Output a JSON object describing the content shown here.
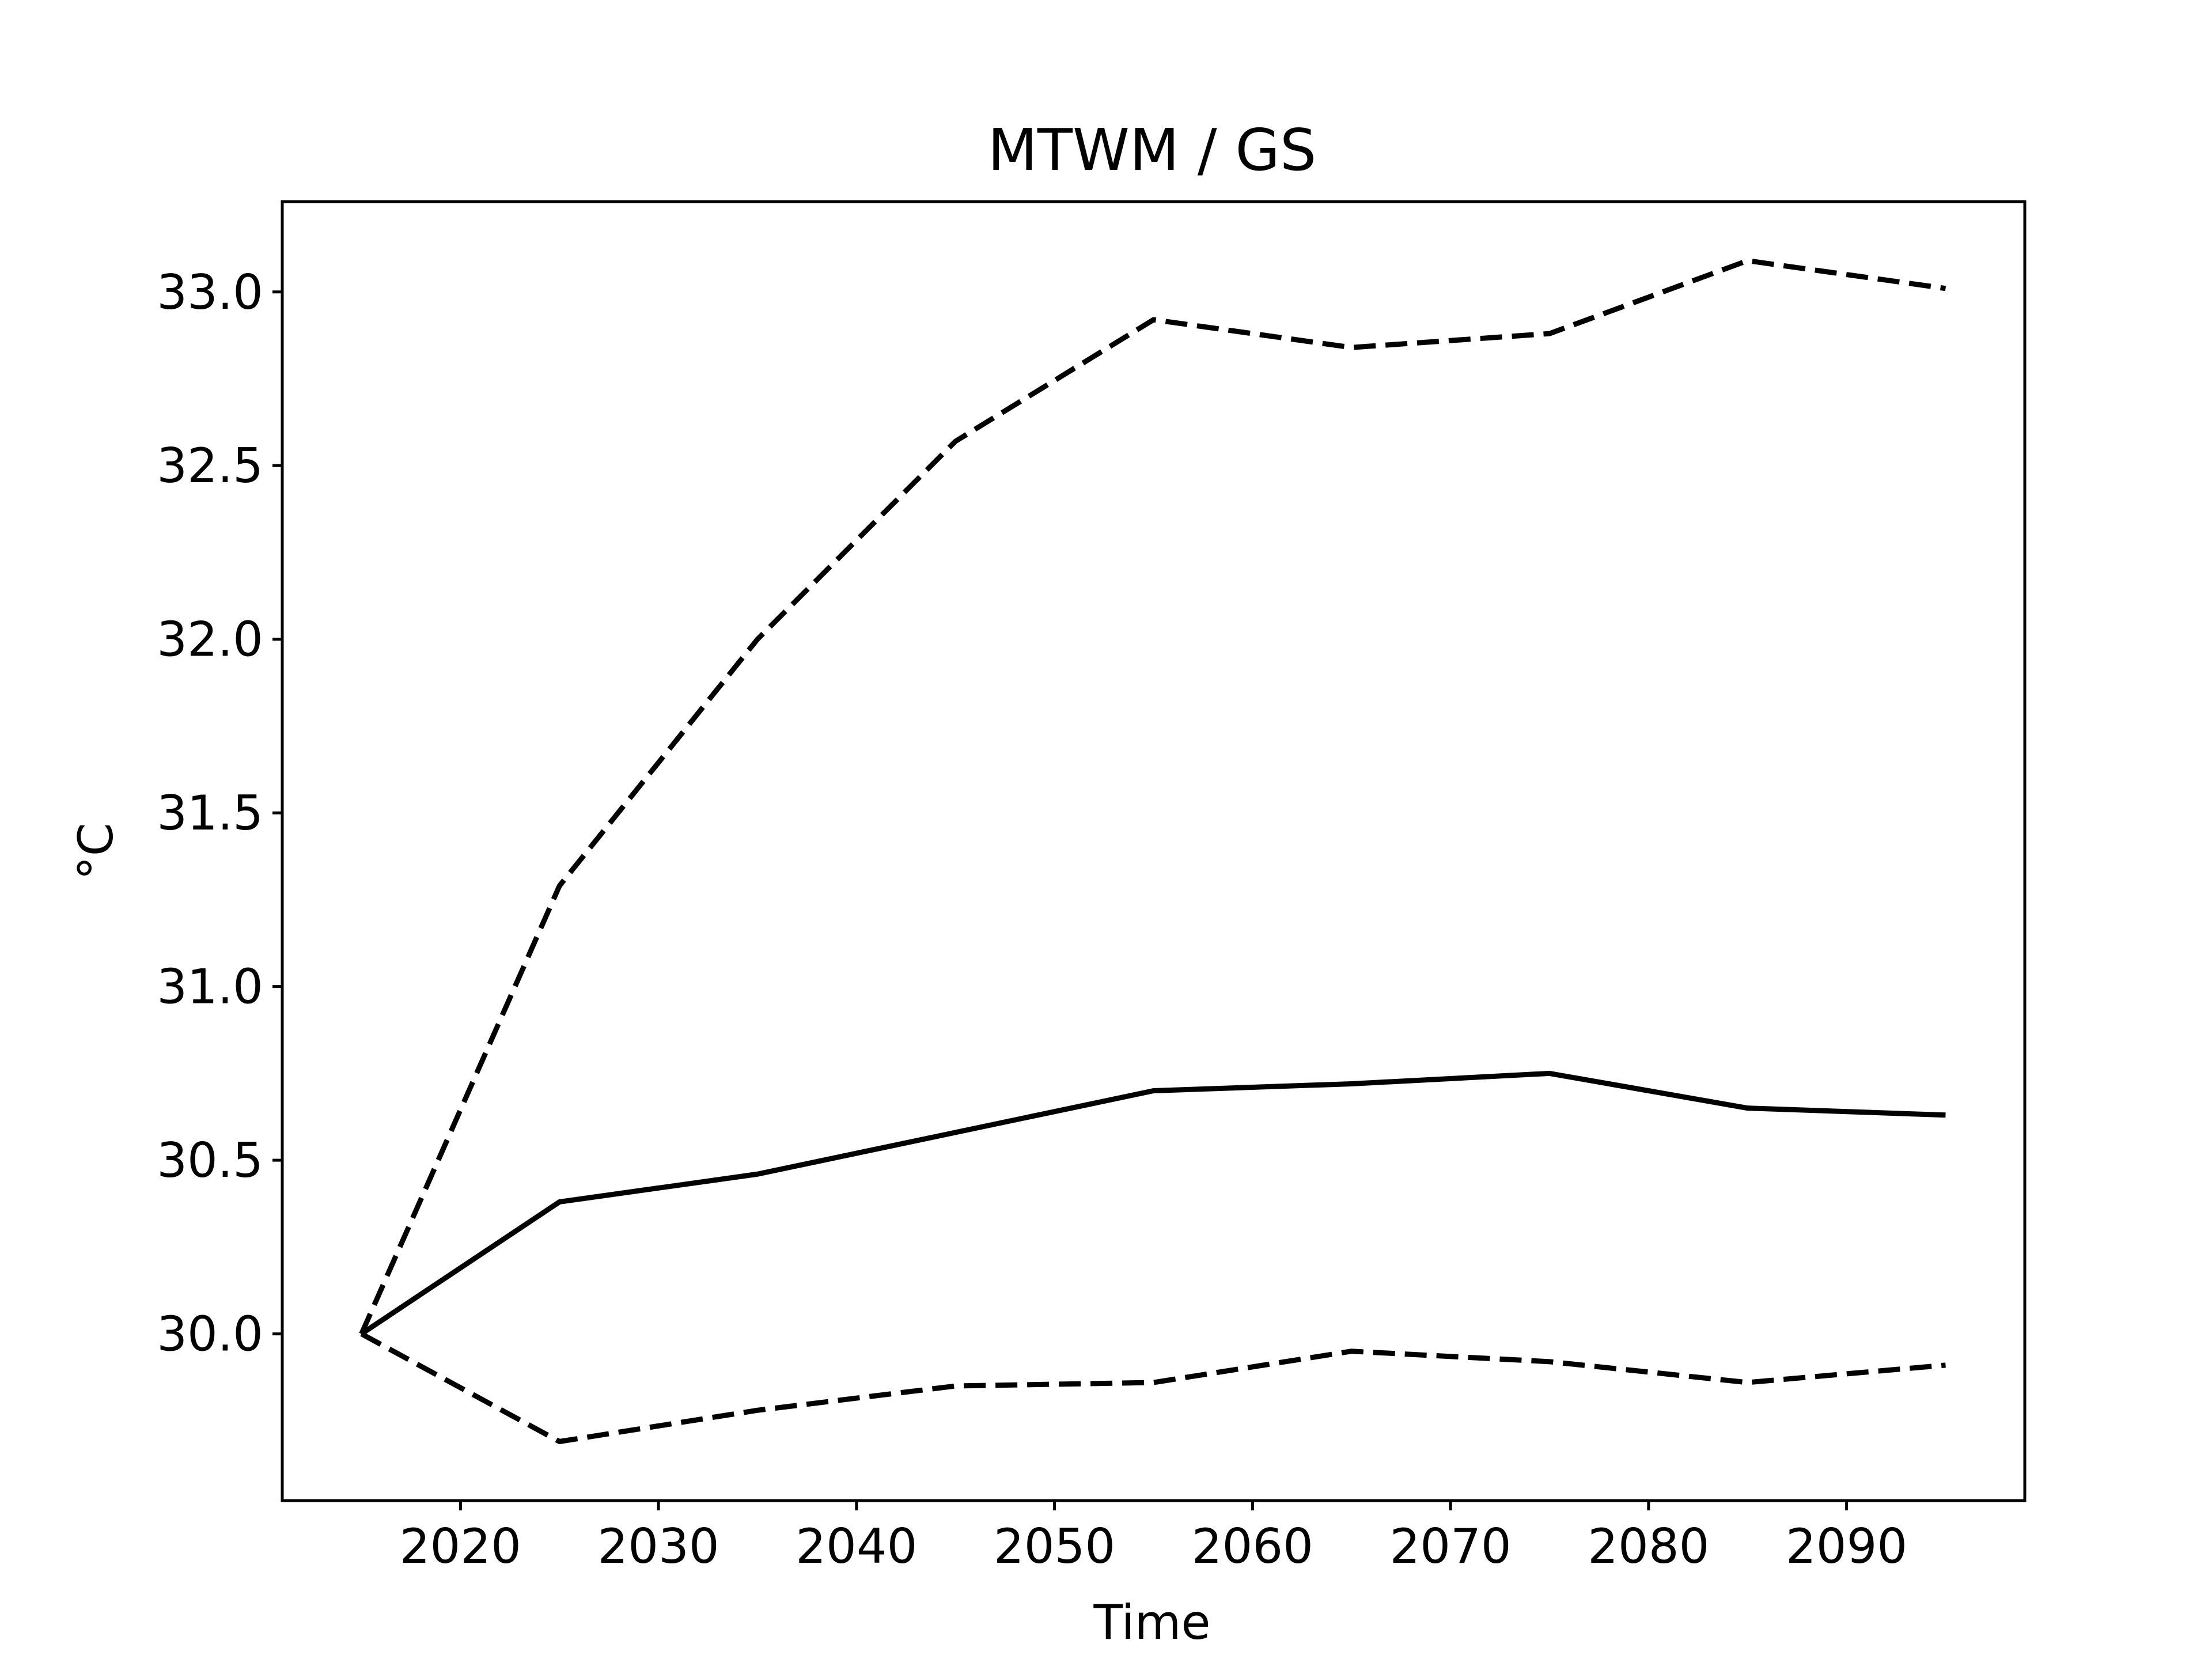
{
  "chart_data": {
    "type": "line",
    "title": "MTWM / GS",
    "xlabel": "Time",
    "ylabel": "°C",
    "xlim": [
      2011,
      2099
    ],
    "ylim": [
      29.52,
      33.26
    ],
    "xticks": [
      2020,
      2030,
      2040,
      2050,
      2060,
      2070,
      2080,
      2090
    ],
    "xtick_labels": [
      "2020",
      "2030",
      "2040",
      "2050",
      "2060",
      "2070",
      "2080",
      "2090"
    ],
    "yticks": [
      30.0,
      30.5,
      31.0,
      31.5,
      32.0,
      32.5,
      33.0
    ],
    "ytick_labels": [
      "30.0",
      "30.5",
      "31.0",
      "31.5",
      "32.0",
      "32.5",
      "33.0"
    ],
    "grid": false,
    "legend": "none",
    "x": [
      2015,
      2025,
      2035,
      2045,
      2055,
      2065,
      2075,
      2085,
      2095
    ],
    "series": [
      {
        "style": "solid",
        "color": "#000000",
        "values": [
          30.0,
          30.38,
          30.46,
          30.58,
          30.7,
          30.72,
          30.75,
          30.65,
          30.63
        ]
      },
      {
        "style": "dashed",
        "color": "#000000",
        "values": [
          30.0,
          31.29,
          32.0,
          32.57,
          32.92,
          32.84,
          32.88,
          33.09,
          33.01
        ]
      },
      {
        "style": "dashed",
        "color": "#000000",
        "values": [
          30.0,
          29.69,
          29.78,
          29.85,
          29.86,
          29.95,
          29.92,
          29.86,
          29.91
        ]
      }
    ]
  }
}
